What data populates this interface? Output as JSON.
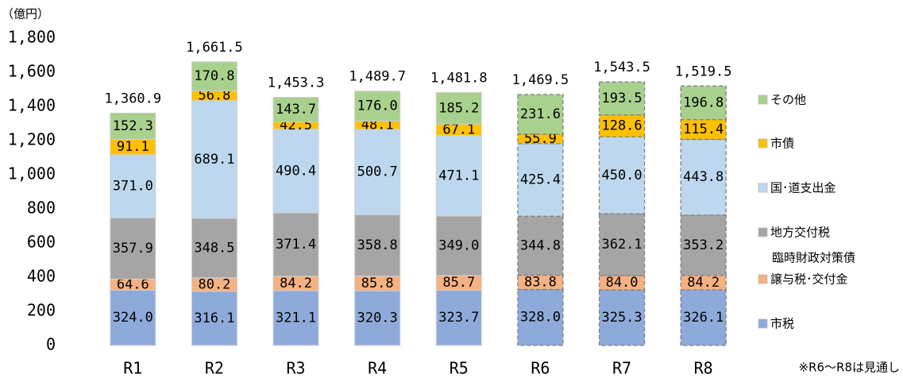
{
  "chart_data": {
    "type": "stacked_bar",
    "unit_label": "（億円）",
    "note": "※R6～R8は見通し",
    "legend_note": "臨時財政対策債",
    "categories": [
      "R1",
      "R2",
      "R3",
      "R4",
      "R5",
      "R6",
      "R7",
      "R8"
    ],
    "dashed": [
      false,
      false,
      false,
      false,
      false,
      true,
      true,
      true
    ],
    "ylim": [
      0,
      1800
    ],
    "yticks": [
      0,
      200,
      400,
      600,
      800,
      {
        "value": 1000,
        "label": "1,000"
      },
      {
        "value": 1200,
        "label": "1,200"
      },
      {
        "value": 1400,
        "label": "1,400"
      },
      {
        "value": 1600,
        "label": "1,600"
      },
      {
        "value": 1800,
        "label": "1,800"
      }
    ],
    "series": [
      {
        "name": "市税",
        "color": "#8eaadb",
        "values": [
          324.0,
          316.1,
          321.1,
          320.3,
          323.7,
          328.0,
          325.3,
          326.1
        ],
        "value_labels": [
          "324.0",
          "316.1",
          "321.1",
          "320.3",
          "323.7",
          "328.0",
          "325.3",
          "326.1"
        ]
      },
      {
        "name": "譲与税･交付金",
        "color": "#f4b183",
        "values": [
          64.6,
          80.2,
          84.2,
          85.8,
          85.7,
          83.8,
          84.0,
          84.2
        ],
        "value_labels": [
          "64.6",
          "80.2",
          "84.2",
          "85.8",
          "85.7",
          "83.8",
          "84.0",
          "84.2"
        ]
      },
      {
        "name": "地方交付税",
        "color": "#a5a5a5",
        "values": [
          357.9,
          348.5,
          371.4,
          358.8,
          349.0,
          344.8,
          362.1,
          353.2
        ],
        "value_labels": [
          "357.9",
          "348.5",
          "371.4",
          "358.8",
          "349.0",
          "344.8",
          "362.1",
          "353.2"
        ]
      },
      {
        "name": "国･道支出金",
        "color": "#bdd7ee",
        "values": [
          371.0,
          689.1,
          490.4,
          500.7,
          471.1,
          425.4,
          450.0,
          443.8
        ],
        "value_labels": [
          "371.0",
          "689.1",
          "490.4",
          "500.7",
          "471.1",
          "425.4",
          "450.0",
          "443.8"
        ]
      },
      {
        "name": "市債",
        "color": "#ffc000",
        "values": [
          91.1,
          56.8,
          42.5,
          48.1,
          67.1,
          55.9,
          128.6,
          115.4
        ],
        "value_labels": [
          "91.1",
          "56.8",
          "42.5",
          "48.1",
          "67.1",
          "55.9",
          "128.6",
          "115.4"
        ]
      },
      {
        "name": "その他",
        "color": "#a9d18e",
        "values": [
          152.3,
          170.8,
          143.7,
          176.0,
          185.2,
          231.6,
          193.5,
          196.8
        ],
        "value_labels": [
          "152.3",
          "170.8",
          "143.7",
          "176.0",
          "185.2",
          "231.6",
          "193.5",
          "196.8"
        ]
      }
    ],
    "totals": [
      1360.9,
      1661.5,
      1453.3,
      1489.7,
      1481.8,
      1469.5,
      1543.5,
      1519.5
    ],
    "total_labels": [
      "1,360.9",
      "1,661.5",
      "1,453.3",
      "1,489.7",
      "1,481.8",
      "1,469.5",
      "1,543.5",
      "1,519.5"
    ]
  }
}
